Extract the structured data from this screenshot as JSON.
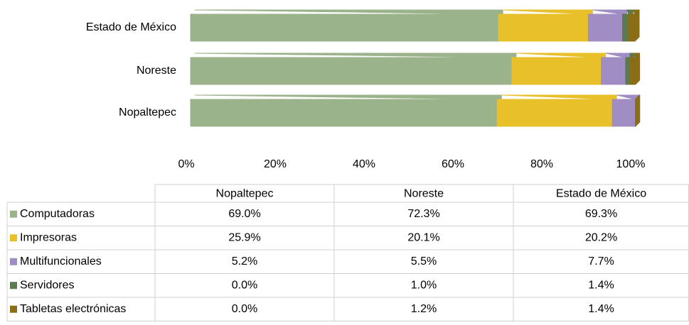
{
  "chart_data": {
    "type": "stacked_bar_horizontal",
    "categories": [
      "Nopaltepec",
      "Noreste",
      "Estado de México"
    ],
    "series": [
      {
        "name": "Computadoras",
        "color": "#9bb38a",
        "values": [
          69.0,
          72.3,
          69.3
        ],
        "value_labels": [
          "69.0%",
          "72.3%",
          "69.3%"
        ]
      },
      {
        "name": "Impresoras",
        "color": "#e8c02a",
        "values": [
          25.9,
          20.1,
          20.2
        ],
        "value_labels": [
          "25.9%",
          "20.1%",
          "20.2%"
        ]
      },
      {
        "name": "Multifuncionales",
        "color": "#a08dc4",
        "values": [
          5.2,
          5.5,
          7.7
        ],
        "value_labels": [
          "5.2%",
          "5.5%",
          "7.7%"
        ]
      },
      {
        "name": "Servidores",
        "color": "#5c7a4e",
        "values": [
          0.0,
          1.0,
          1.4
        ],
        "value_labels": [
          "0.0%",
          "1.0%",
          "1.4%"
        ]
      },
      {
        "name": "Tabletas electrónicas",
        "color": "#8a6d14",
        "values": [
          0.0,
          1.2,
          1.4
        ],
        "value_labels": [
          "0.0%",
          "1.2%",
          "1.4%"
        ]
      }
    ],
    "xlim": [
      0,
      100
    ],
    "xticks": [
      {
        "value": 0,
        "label": "0%"
      },
      {
        "value": 20,
        "label": "20%"
      },
      {
        "value": 40,
        "label": "40%"
      },
      {
        "value": 60,
        "label": "60%"
      },
      {
        "value": 80,
        "label": "80%"
      },
      {
        "value": 100,
        "label": "100%"
      }
    ]
  }
}
